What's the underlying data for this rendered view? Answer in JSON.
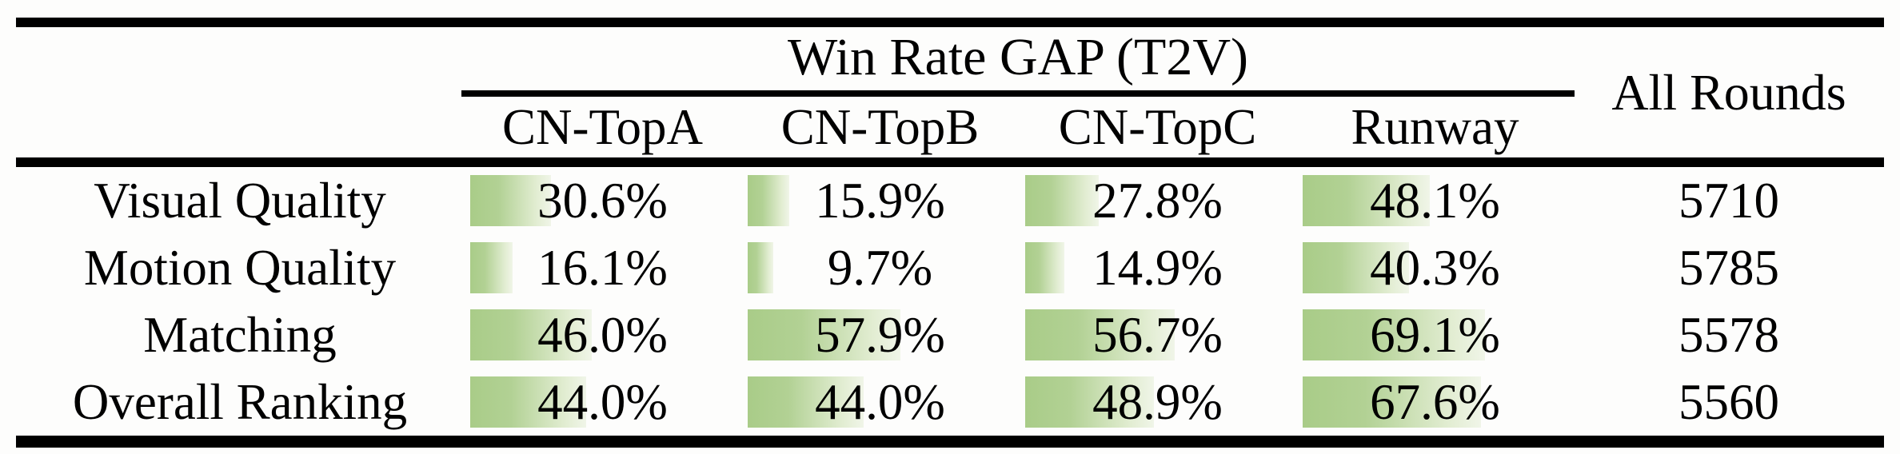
{
  "table": {
    "group_header": "Win Rate GAP (T2V)",
    "all_rounds_header": "All Rounds",
    "columns": [
      "CN-TopA",
      "CN-TopB",
      "CN-TopC",
      "Runway"
    ],
    "rows": [
      {
        "label": "Visual Quality",
        "cells": [
          {
            "text": "30.6%",
            "value": 30.6
          },
          {
            "text": "15.9%",
            "value": 15.9
          },
          {
            "text": "27.8%",
            "value": 27.8
          },
          {
            "text": "48.1%",
            "value": 48.1
          }
        ],
        "all_rounds": "5710"
      },
      {
        "label": "Motion Quality",
        "cells": [
          {
            "text": "16.1%",
            "value": 16.1
          },
          {
            "text": "9.7%",
            "value": 9.7
          },
          {
            "text": "14.9%",
            "value": 14.9
          },
          {
            "text": "40.3%",
            "value": 40.3
          }
        ],
        "all_rounds": "5785"
      },
      {
        "label": "Matching",
        "cells": [
          {
            "text": "46.0%",
            "value": 46.0
          },
          {
            "text": "57.9%",
            "value": 57.9
          },
          {
            "text": "56.7%",
            "value": 56.7
          },
          {
            "text": "69.1%",
            "value": 69.1
          }
        ],
        "all_rounds": "5578"
      },
      {
        "label": "Overall Ranking",
        "cells": [
          {
            "text": "44.0%",
            "value": 44.0
          },
          {
            "text": "44.0%",
            "value": 44.0
          },
          {
            "text": "48.9%",
            "value": 48.9
          },
          {
            "text": "67.6%",
            "value": 67.6
          }
        ],
        "all_rounds": "5560"
      }
    ],
    "colors": {
      "bar_gradient_start": "#a9cc88",
      "bar_gradient_end": "#f0f5e8",
      "rule": "#000000",
      "text": "#000000",
      "background": "#fdfdfc"
    }
  },
  "chart_data": {
    "type": "table",
    "title": "Win Rate GAP (T2V)",
    "columns": [
      "CN-TopA",
      "CN-TopB",
      "CN-TopC",
      "Runway",
      "All Rounds"
    ],
    "categories": [
      "Visual Quality",
      "Motion Quality",
      "Matching",
      "Overall Ranking"
    ],
    "series": [
      {
        "name": "CN-TopA",
        "values": [
          30.6,
          16.1,
          46.0,
          44.0
        ],
        "unit": "%"
      },
      {
        "name": "CN-TopB",
        "values": [
          15.9,
          9.7,
          57.9,
          44.0
        ],
        "unit": "%"
      },
      {
        "name": "CN-TopC",
        "values": [
          27.8,
          14.9,
          56.7,
          48.9
        ],
        "unit": "%"
      },
      {
        "name": "Runway",
        "values": [
          48.1,
          40.3,
          69.1,
          67.6
        ],
        "unit": "%"
      },
      {
        "name": "All Rounds",
        "values": [
          5710,
          5785,
          5578,
          5560
        ],
        "unit": "count"
      }
    ],
    "layout_hints": {
      "in_cell_data_bars": true,
      "bar_range_percent": [
        0,
        100
      ],
      "bar_fill": "green gradient left-to-right, width proportional to percentage"
    }
  }
}
